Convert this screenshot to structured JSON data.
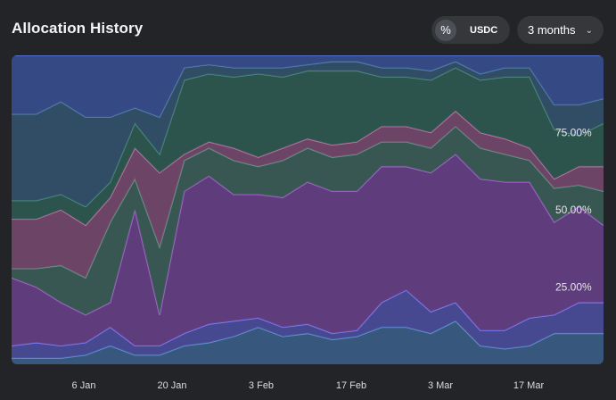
{
  "header": {
    "title": "Allocation History",
    "percent_icon": "percent-icon",
    "currency_label": "USDC",
    "range_label": "3 months",
    "range_icon": "chevron-down-icon"
  },
  "chart_data": {
    "type": "area",
    "stacked": true,
    "normalized": true,
    "title": "Allocation History",
    "ylim": [
      0,
      100
    ],
    "y_ticks": [
      "25.00%",
      "50.00%",
      "75.00%"
    ],
    "x_ticks": [
      "6 Jan",
      "20 Jan",
      "3 Feb",
      "17 Feb",
      "3 Mar",
      "17 Mar"
    ],
    "x": [
      "27 Dec",
      "31 Dec",
      "3 Jan",
      "6 Jan",
      "9 Jan",
      "12 Jan",
      "15 Jan",
      "18 Jan",
      "22 Jan",
      "26 Jan",
      "30 Jan",
      "3 Feb",
      "7 Feb",
      "11 Feb",
      "16 Feb",
      "19 Feb",
      "23 Feb",
      "27 Feb",
      "3 Mar",
      "7 Mar",
      "11 Mar",
      "15 Mar",
      "18 Mar",
      "21 Mar",
      "24 Mar"
    ],
    "grid": false,
    "legend": "none",
    "series": [
      {
        "color": "#3c5f86",
        "values": [
          2,
          2,
          2,
          3,
          6,
          3,
          3,
          6,
          7,
          9,
          12,
          9,
          10,
          8,
          9,
          12,
          12,
          10,
          14,
          6,
          5,
          6,
          10,
          10,
          10
        ]
      },
      {
        "color": "#4f4f9e",
        "values": [
          4,
          5,
          4,
          4,
          6,
          3,
          3,
          4,
          6,
          5,
          3,
          3,
          3,
          2,
          2,
          8,
          12,
          7,
          6,
          5,
          6,
          9,
          6,
          10,
          10
        ]
      },
      {
        "color": "#6b3f86",
        "values": [
          22,
          18,
          14,
          9,
          8,
          44,
          10,
          46,
          48,
          41,
          40,
          42,
          46,
          46,
          45,
          44,
          40,
          45,
          48,
          49,
          48,
          44,
          30,
          31,
          25
        ]
      },
      {
        "color": "#3e5f55",
        "values": [
          3,
          6,
          12,
          12,
          26,
          10,
          22,
          10,
          9,
          11,
          9,
          12,
          11,
          11,
          12,
          8,
          8,
          8,
          9,
          10,
          9,
          7,
          11,
          7,
          11
        ]
      },
      {
        "color": "#7a4a6c",
        "values": [
          16,
          16,
          18,
          17,
          8,
          10,
          24,
          2,
          2,
          4,
          3,
          4,
          3,
          4,
          4,
          5,
          5,
          5,
          5,
          5,
          5,
          4,
          3,
          6,
          8
        ]
      },
      {
        "color": "#2f5a4e",
        "values": [
          6,
          6,
          5,
          6,
          5,
          8,
          6,
          24,
          22,
          23,
          27,
          23,
          22,
          24,
          23,
          16,
          16,
          17,
          14,
          17,
          20,
          23,
          16,
          10,
          14
        ]
      },
      {
        "color": "#34546b",
        "values": [
          28,
          28,
          30,
          29,
          21,
          5,
          12,
          4,
          3,
          3,
          2,
          3,
          2,
          3,
          3,
          3,
          3,
          3,
          2,
          2,
          3,
          3,
          8,
          10,
          8
        ]
      },
      {
        "color": "#3a4f8f",
        "values": [
          19,
          19,
          15,
          20,
          20,
          17,
          20,
          4,
          3,
          4,
          4,
          4,
          3,
          2,
          2,
          4,
          4,
          5,
          2,
          6,
          4,
          4,
          16,
          16,
          14
        ]
      }
    ]
  }
}
